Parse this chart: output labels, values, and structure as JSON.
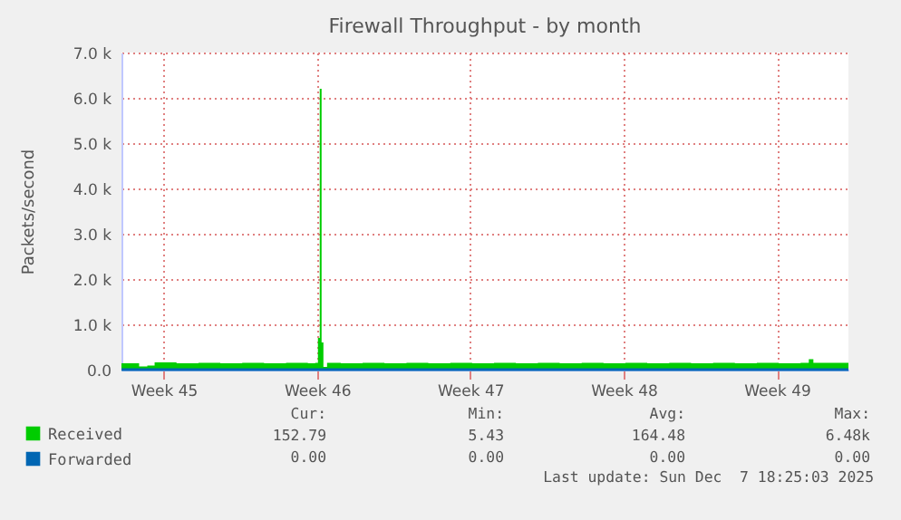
{
  "chart_data": {
    "type": "area",
    "title": "Firewall Throughput - by month",
    "ylabel": "Packets/second",
    "xlim": [
      "2025-11-04T13:40",
      "2025-12-07T18:25"
    ],
    "xticks": [
      {
        "value": "2025-11-06T12:00",
        "label": "Week 45"
      },
      {
        "value": "2025-11-13T12:00",
        "label": "Week 46"
      },
      {
        "value": "2025-11-20T12:00",
        "label": "Week 47"
      },
      {
        "value": "2025-11-27T12:00",
        "label": "Week 48"
      },
      {
        "value": "2025-12-04T12:00",
        "label": "Week 49"
      }
    ],
    "ylim": [
      0,
      7000
    ],
    "yticks": [
      {
        "value": 0,
        "label": "0.0"
      },
      {
        "value": 1000,
        "label": "1.0 k"
      },
      {
        "value": 2000,
        "label": "2.0 k"
      },
      {
        "value": 3000,
        "label": "3.0 k"
      },
      {
        "value": 4000,
        "label": "4.0 k"
      },
      {
        "value": 5000,
        "label": "5.0 k"
      },
      {
        "value": 6000,
        "label": "6.0 k"
      },
      {
        "value": 7000,
        "label": "7.0 k"
      }
    ],
    "grid": true,
    "legend": "bottom",
    "series": [
      {
        "name": "Received",
        "color": "#00cc00",
        "x": [
          "2025-11-04T13:40",
          "2025-11-05T09:00",
          "2025-11-05T18:00",
          "2025-11-06T02:00",
          "2025-11-07T02:00",
          "2025-11-08T02:00",
          "2025-11-09T02:00",
          "2025-11-10T02:00",
          "2025-11-11T02:00",
          "2025-11-12T02:00",
          "2025-11-13T02:00",
          "2025-11-13T10:00",
          "2025-11-13T13:00",
          "2025-11-13T15:00",
          "2025-11-13T17:00",
          "2025-11-13T19:00",
          "2025-11-13T23:00",
          "2025-11-14T14:00",
          "2025-11-15T14:00",
          "2025-11-16T14:00",
          "2025-11-17T14:00",
          "2025-11-18T14:00",
          "2025-11-19T14:00",
          "2025-11-20T14:00",
          "2025-11-21T14:00",
          "2025-11-22T14:00",
          "2025-11-23T14:00",
          "2025-11-24T14:00",
          "2025-11-25T14:00",
          "2025-11-26T14:00",
          "2025-11-27T14:00",
          "2025-11-28T14:00",
          "2025-11-29T14:00",
          "2025-11-30T14:00",
          "2025-12-01T14:00",
          "2025-12-02T14:00",
          "2025-12-03T14:00",
          "2025-12-04T14:00",
          "2025-12-05T14:00",
          "2025-12-05T23:00",
          "2025-12-06T04:00",
          "2025-12-06T14:00",
          "2025-12-07T18:25"
        ],
        "values": [
          140,
          70,
          90,
          160,
          140,
          150,
          140,
          150,
          140,
          150,
          140,
          150,
          700,
          6200,
          600,
          60,
          150,
          140,
          150,
          140,
          150,
          140,
          150,
          140,
          150,
          140,
          150,
          140,
          150,
          140,
          150,
          140,
          150,
          140,
          150,
          140,
          150,
          140,
          150,
          230,
          150,
          150,
          150
        ]
      },
      {
        "name": "Forwarded",
        "type": "line",
        "color": "#0066b3",
        "x": [
          "2025-11-04T13:40",
          "2025-12-07T18:25"
        ],
        "values": [
          0,
          0
        ]
      }
    ],
    "annotations": [
      "Cur:",
      "Min:",
      "Avg:",
      "Max:",
      "152.79",
      "5.43",
      "164.48",
      "6.48k",
      "0.00",
      "0.00",
      "0.00",
      "0.00",
      "Last update: Sun Dec  7 18:25:03 2025"
    ]
  }
}
